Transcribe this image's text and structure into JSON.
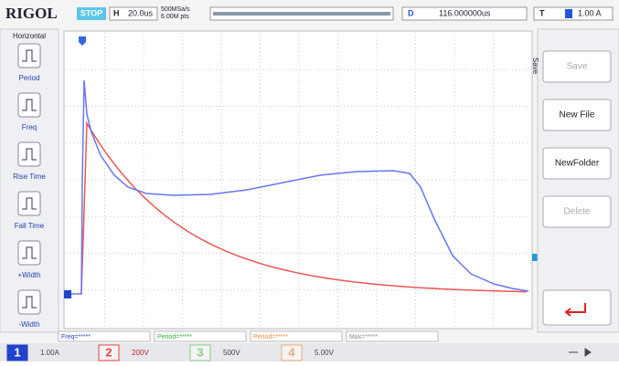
{
  "header": {
    "brand": "RIGOL",
    "status": "STOP",
    "timebase_label": "H",
    "timebase": "20.0us",
    "sample_rate": "500MSa/s",
    "memory_depth": "6.00M pts",
    "delay_label": "D",
    "delay": "116.000000us",
    "trigger_label": "T",
    "trigger_level": "1.00 A"
  },
  "left_menu": {
    "title": "Horizontal",
    "items": [
      "Period",
      "Freq",
      "Rise Time",
      "Fall Time",
      "+Width",
      "-Width"
    ]
  },
  "right_menu": {
    "title": "Save",
    "items": [
      "Save",
      "New File",
      "NewFolder",
      "Delete"
    ]
  },
  "measurements": [
    "Freq=*****",
    "Period=*****",
    "Period=*****",
    "Max=*****"
  ],
  "channels": [
    {
      "number": "1",
      "scale": "1.00A"
    },
    {
      "number": "2",
      "scale": "200V"
    },
    {
      "number": "3",
      "scale": "500V"
    },
    {
      "number": "4",
      "scale": "5.00V"
    }
  ]
}
